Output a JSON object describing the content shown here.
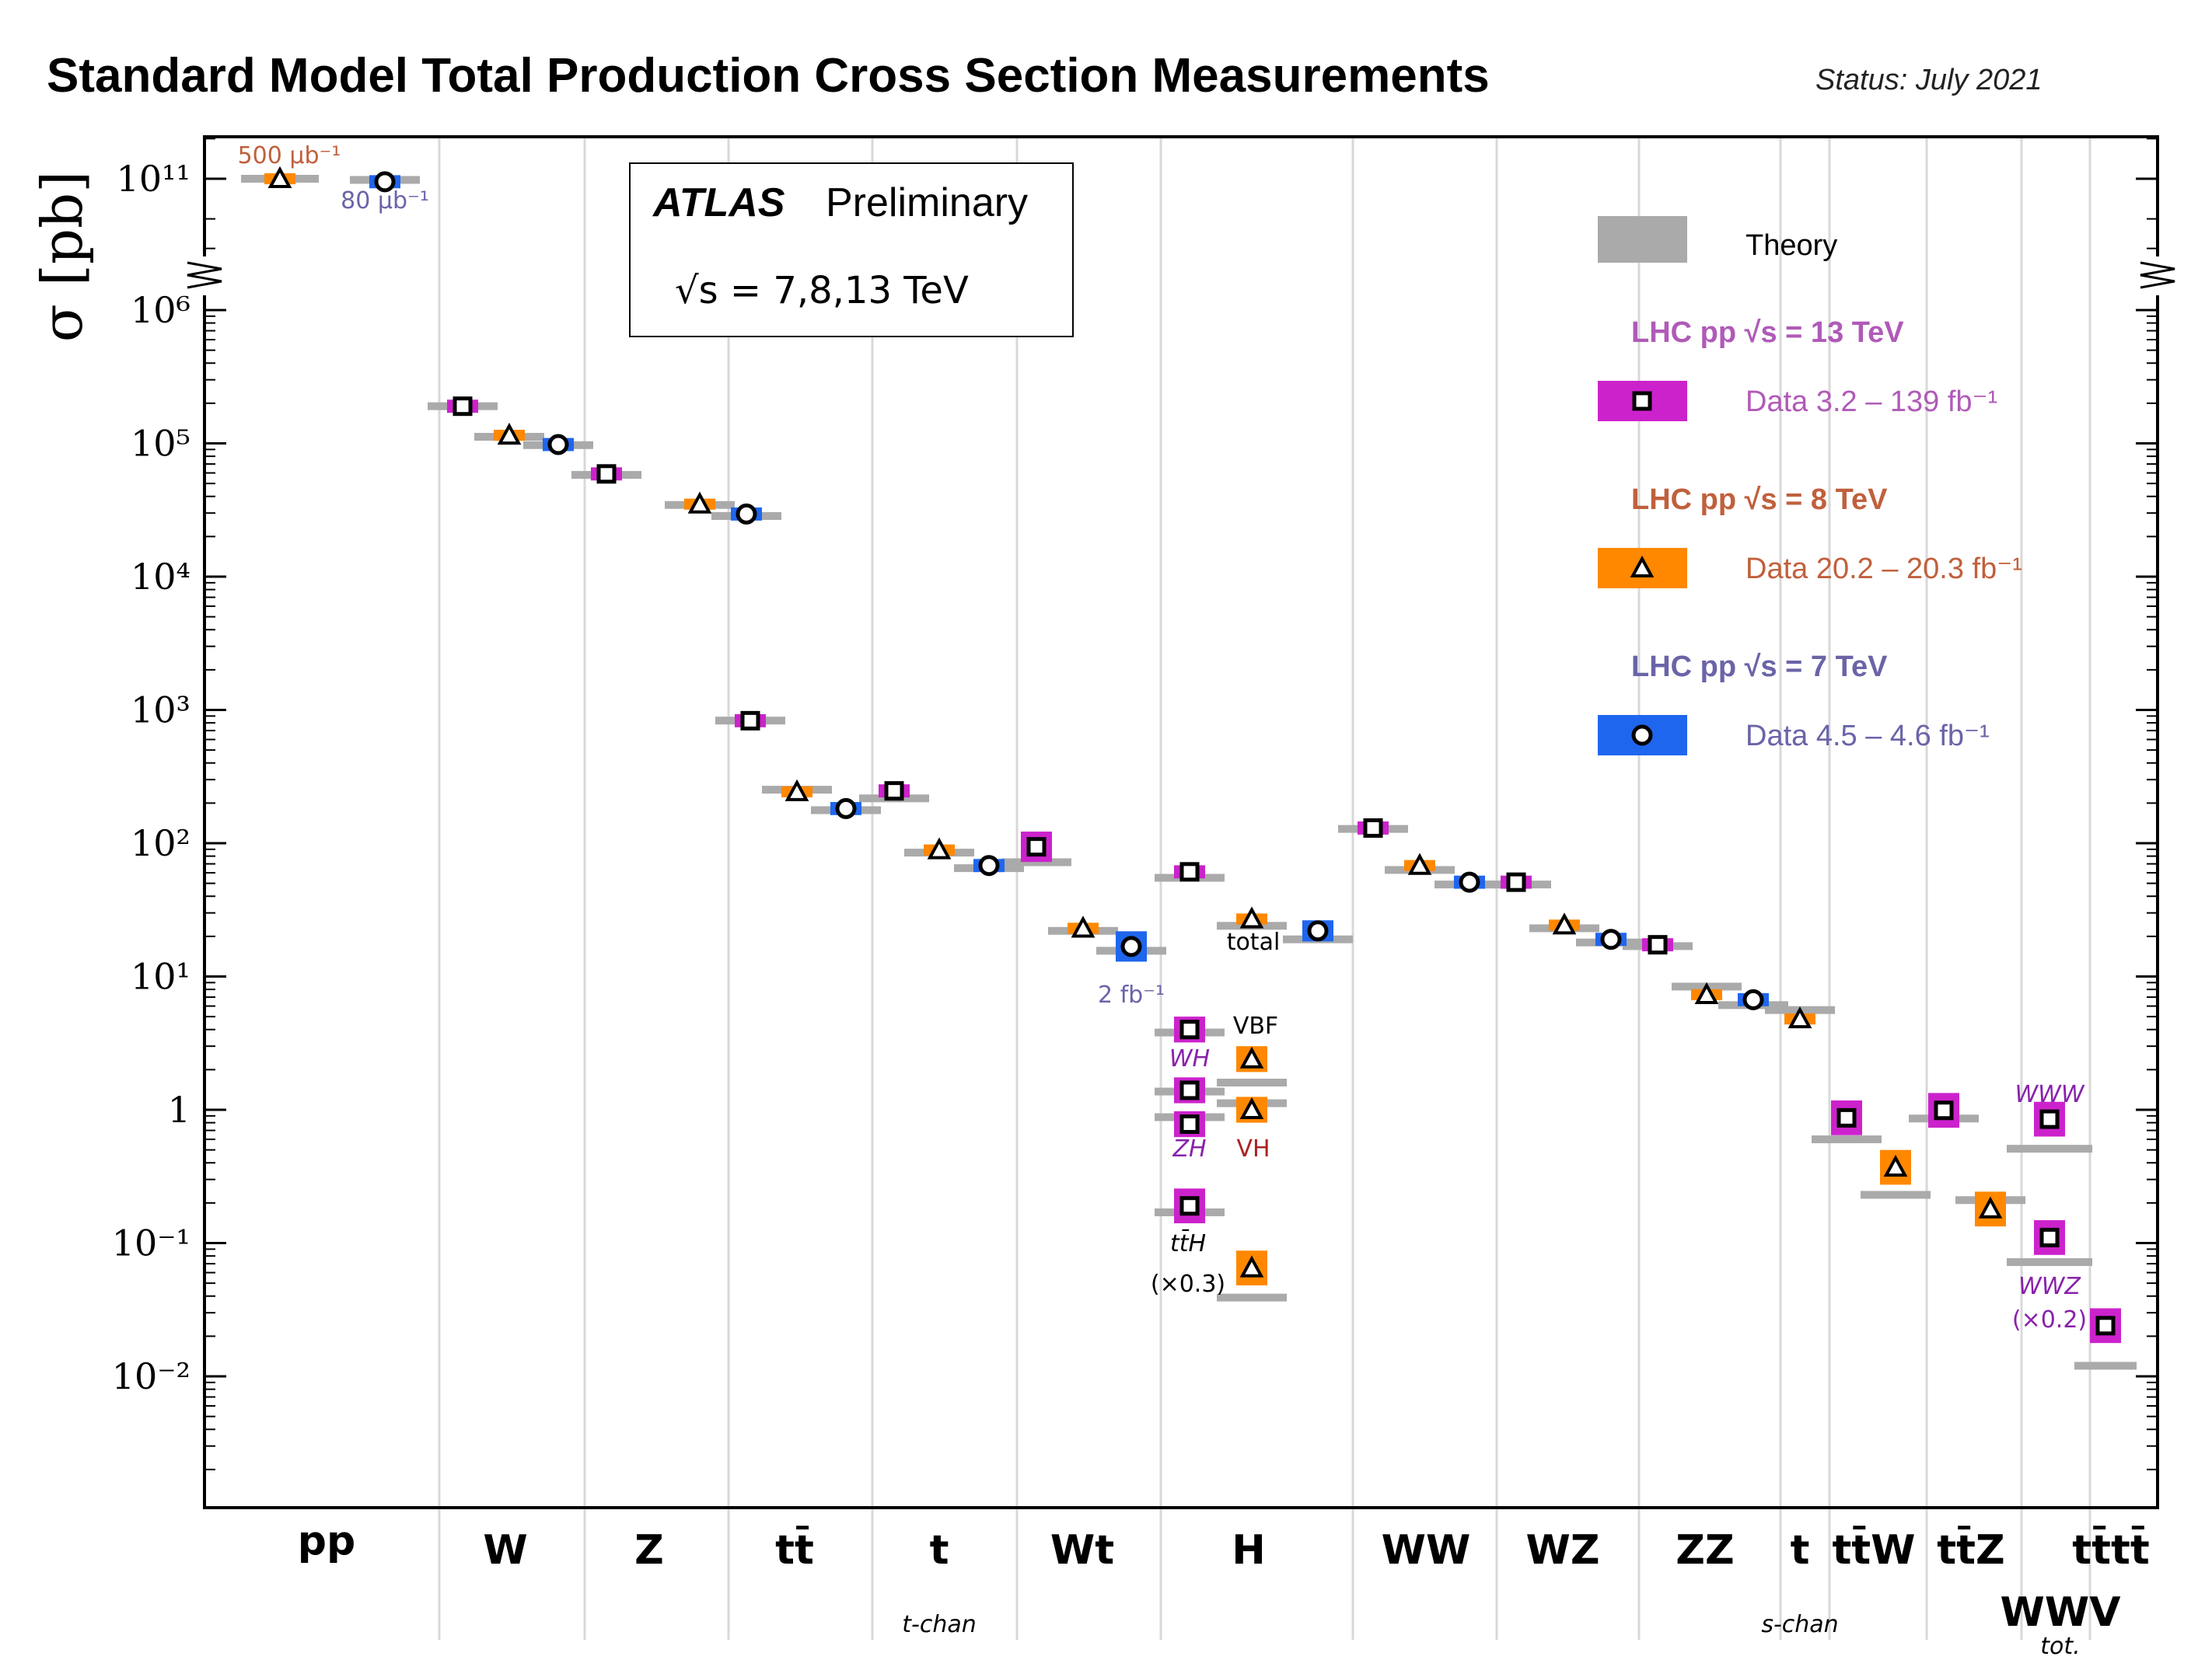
{
  "title": "Standard Model Total Production Cross Section Measurements",
  "status": "Status: July 2021",
  "atlas_box": {
    "experiment": "ATLAS",
    "label": "Preliminary",
    "energy": "√s = 7,8,13 TeV"
  },
  "legend": {
    "theory": "Theory",
    "groups": [
      {
        "head": "LHC pp  √s = 13 TeV",
        "data": "Data  3.2 – 139 fb⁻¹",
        "color": "#cc22cc",
        "text_color": "#b05ab8",
        "marker": "square"
      },
      {
        "head": "LHC pp  √s = 8 TeV",
        "data": "Data  20.2 – 20.3 fb⁻¹",
        "color": "#ff8800",
        "text_color": "#c0603c",
        "marker": "triangle"
      },
      {
        "head": "LHC pp  √s = 7 TeV",
        "data": "Data  4.5 – 4.6 fb⁻¹",
        "color": "#1f66ee",
        "text_color": "#6a64a8",
        "marker": "circle"
      }
    ]
  },
  "colors": {
    "13TeV": "#cc22cc",
    "8TeV": "#ff8800",
    "7TeV": "#1f66ee",
    "theory": "#aaaaaa"
  },
  "chart_data": {
    "type": "scatter",
    "ylabel": "σ [pb]",
    "yscale": "log",
    "ylim": [
      0.001,
      100000000000.0
    ],
    "y_break": [
      1000000.0,
      100000000000.0
    ],
    "y_tick_labels": [
      "10¹¹",
      "10⁶",
      "10⁵",
      "10⁴",
      "10³",
      "10²",
      "10¹",
      "1",
      "10⁻¹",
      "10⁻²"
    ],
    "categories": [
      {
        "label": "pp",
        "sub": ""
      },
      {
        "label": "W",
        "sub": ""
      },
      {
        "label": "Z",
        "sub": ""
      },
      {
        "label": "tt̄",
        "sub": ""
      },
      {
        "label": "t",
        "sub": "t-chan"
      },
      {
        "label": "Wt",
        "sub": ""
      },
      {
        "label": "H",
        "sub": ""
      },
      {
        "label": "WW",
        "sub": ""
      },
      {
        "label": "WZ",
        "sub": ""
      },
      {
        "label": "ZZ",
        "sub": ""
      },
      {
        "label": "t",
        "sub": "s-chan"
      },
      {
        "label": "tt̄W",
        "sub": ""
      },
      {
        "label": "tt̄Z",
        "sub": ""
      },
      {
        "label": "tt̄tt̄",
        "sub": ""
      },
      {
        "label": "WWV",
        "sub": "tot."
      }
    ],
    "measurements": [
      {
        "cat": 0,
        "energy": "8TeV",
        "value": 100000000000.0,
        "theory": 100000000000.0
      },
      {
        "cat": 0,
        "energy": "7TeV",
        "value": 95000000000.0,
        "theory": 98000000000.0
      },
      {
        "cat": 1,
        "energy": "13TeV",
        "value": 190000,
        "theory": 190000
      },
      {
        "cat": 1,
        "energy": "8TeV",
        "value": 115000,
        "theory": 112000
      },
      {
        "cat": 1,
        "energy": "7TeV",
        "value": 98000,
        "theory": 97000
      },
      {
        "cat": 2,
        "energy": "13TeV",
        "value": 59000,
        "theory": 58000
      },
      {
        "cat": 2,
        "energy": "8TeV",
        "value": 35000,
        "theory": 34500
      },
      {
        "cat": 2,
        "energy": "7TeV",
        "value": 29500,
        "theory": 28500
      },
      {
        "cat": 3,
        "energy": "13TeV",
        "value": 830,
        "theory": 832
      },
      {
        "cat": 3,
        "energy": "8TeV",
        "value": 243,
        "theory": 252
      },
      {
        "cat": 3,
        "energy": "7TeV",
        "value": 182,
        "theory": 177
      },
      {
        "cat": 4,
        "energy": "13TeV",
        "value": 247,
        "theory": 217
      },
      {
        "cat": 4,
        "energy": "8TeV",
        "value": 89,
        "theory": 85
      },
      {
        "cat": 4,
        "energy": "7TeV",
        "value": 68,
        "theory": 65
      },
      {
        "cat": 5,
        "energy": "13TeV",
        "value": 94,
        "theory": 72
      },
      {
        "cat": 5,
        "energy": "8TeV",
        "value": 23,
        "theory": 22
      },
      {
        "cat": 5,
        "energy": "7TeV",
        "value": 16.8,
        "theory": 15.6
      },
      {
        "cat": 6,
        "energy": "13TeV",
        "value": 61,
        "theory": 55
      },
      {
        "cat": 6,
        "energy": "8TeV",
        "value": 27,
        "theory": 24
      },
      {
        "cat": 6,
        "energy": "7TeV",
        "value": 22,
        "theory": 19
      },
      {
        "cat": 6,
        "energy": "13TeV",
        "value": 4.0,
        "theory": 3.8,
        "sub": "VBF"
      },
      {
        "cat": 6,
        "energy": "8TeV",
        "value": 2.4,
        "theory": 1.6,
        "sub": "VBF"
      },
      {
        "cat": 6,
        "energy": "13TeV",
        "value": 1.4,
        "theory": 1.37,
        "sub": "WH"
      },
      {
        "cat": 6,
        "energy": "8TeV",
        "value": 1.0,
        "theory": 1.12,
        "sub": "VH"
      },
      {
        "cat": 6,
        "energy": "13TeV",
        "value": 0.78,
        "theory": 0.88,
        "sub": "ZH"
      },
      {
        "cat": 6,
        "energy": "13TeV",
        "value": 0.19,
        "theory": 0.17,
        "sub": "ttH"
      },
      {
        "cat": 6,
        "energy": "8TeV",
        "value": 0.065,
        "theory": 0.039,
        "sub": "ttH"
      },
      {
        "cat": 7,
        "energy": "13TeV",
        "value": 130,
        "theory": 128
      },
      {
        "cat": 7,
        "energy": "8TeV",
        "value": 68,
        "theory": 63
      },
      {
        "cat": 7,
        "energy": "7TeV",
        "value": 51,
        "theory": 49
      },
      {
        "cat": 8,
        "energy": "13TeV",
        "value": 51,
        "theory": 49
      },
      {
        "cat": 8,
        "energy": "8TeV",
        "value": 24.3,
        "theory": 23
      },
      {
        "cat": 8,
        "energy": "7TeV",
        "value": 19,
        "theory": 18
      },
      {
        "cat": 9,
        "energy": "13TeV",
        "value": 17.3,
        "theory": 16.9
      },
      {
        "cat": 9,
        "energy": "8TeV",
        "value": 7.3,
        "theory": 8.4
      },
      {
        "cat": 9,
        "energy": "7TeV",
        "value": 6.7,
        "theory": 6.1
      },
      {
        "cat": 10,
        "energy": "8TeV",
        "value": 4.8,
        "theory": 5.6
      },
      {
        "cat": 11,
        "energy": "13TeV",
        "value": 0.87,
        "theory": 0.6
      },
      {
        "cat": 11,
        "energy": "8TeV",
        "value": 0.37,
        "theory": 0.23
      },
      {
        "cat": 12,
        "energy": "13TeV",
        "value": 0.99,
        "theory": 0.86
      },
      {
        "cat": 12,
        "energy": "8TeV",
        "value": 0.18,
        "theory": 0.21
      },
      {
        "cat": 13,
        "energy": "13TeV",
        "value": 0.024,
        "theory": 0.012
      },
      {
        "cat": 14,
        "energy": "13TeV",
        "value": 0.85,
        "theory": 0.51,
        "sub": "WWW"
      },
      {
        "cat": 14,
        "energy": "13TeV",
        "value": 0.11,
        "theory": 0.072,
        "sub": "WWZ"
      }
    ],
    "annotations": {
      "pp_8": "500 μb⁻¹",
      "pp_7": "80 μb⁻¹",
      "wt_7": "2 fb⁻¹",
      "h_total": "total",
      "h_vbf": "VBF",
      "h_wh": "WH",
      "h_zh": "ZH",
      "h_vh": "VH",
      "h_tth": "tt̄H",
      "h_tth_scale": "(×0.3)",
      "www": "WWW",
      "wwz": "WWZ",
      "wwz_scale": "(×0.2)"
    }
  }
}
